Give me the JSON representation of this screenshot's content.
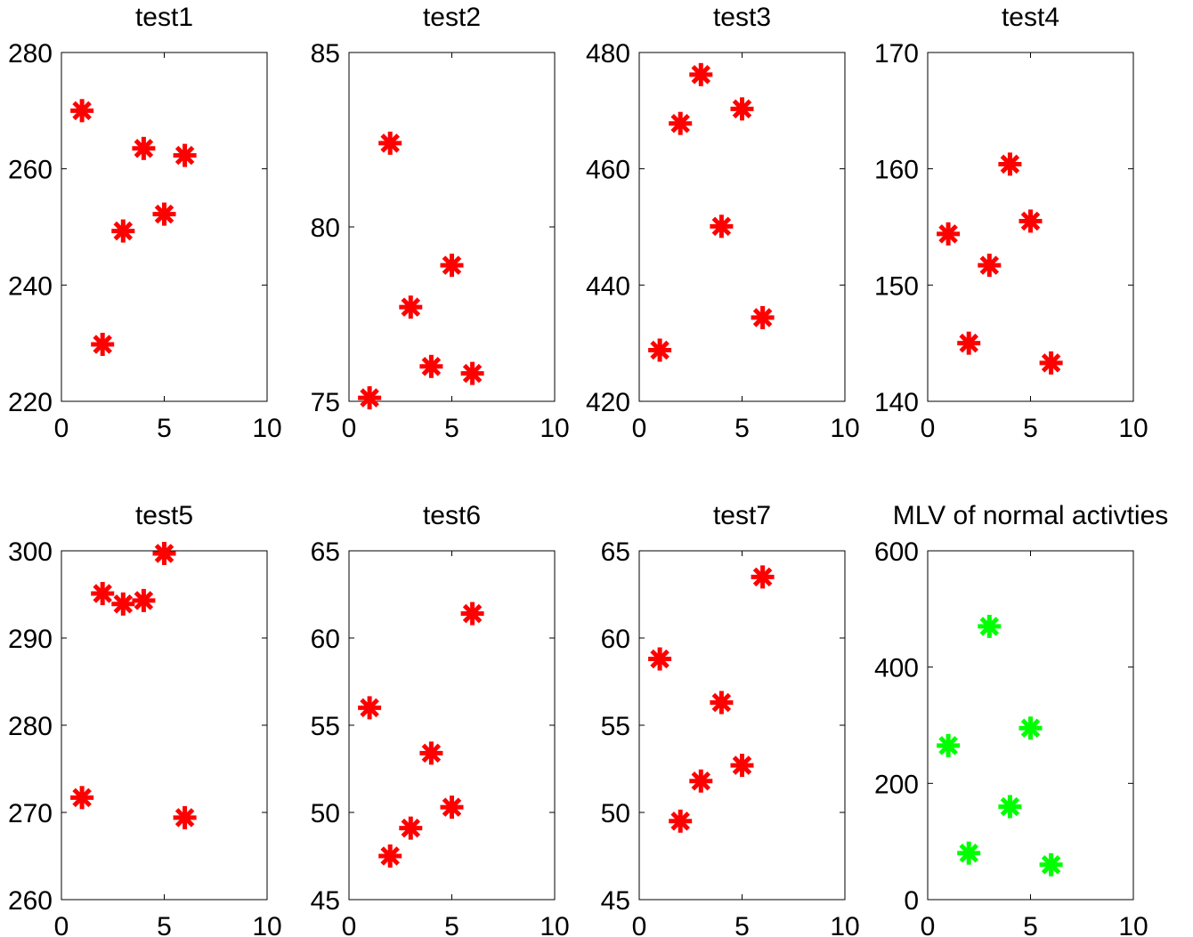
{
  "chart_data": [
    {
      "type": "scatter",
      "title": "test1",
      "xlabel": "",
      "ylabel": "",
      "xlim": [
        0,
        10
      ],
      "ylim": [
        220,
        280
      ],
      "xticks": [
        "0",
        "5",
        "10"
      ],
      "yticks": [
        "220",
        "240",
        "260",
        "280"
      ],
      "marker": "asterisk",
      "color": "#ff0000",
      "x": [
        1,
        2,
        3,
        4,
        5,
        6
      ],
      "y": [
        270,
        229.8,
        249.3,
        263.5,
        252.2,
        262.3
      ]
    },
    {
      "type": "scatter",
      "title": "test2",
      "xlabel": "",
      "ylabel": "",
      "xlim": [
        0,
        10
      ],
      "ylim": [
        75,
        85
      ],
      "xticks": [
        "0",
        "5",
        "10"
      ],
      "yticks": [
        "75",
        "80",
        "85"
      ],
      "marker": "asterisk",
      "color": "#ff0000",
      "x": [
        1,
        2,
        3,
        4,
        5,
        6
      ],
      "y": [
        75.1,
        82.4,
        77.7,
        76.0,
        78.9,
        75.8
      ]
    },
    {
      "type": "scatter",
      "title": "test3",
      "xlabel": "",
      "ylabel": "",
      "xlim": [
        0,
        10
      ],
      "ylim": [
        420,
        480
      ],
      "xticks": [
        "0",
        "5",
        "10"
      ],
      "yticks": [
        "420",
        "440",
        "460",
        "480"
      ],
      "marker": "asterisk",
      "color": "#ff0000",
      "x": [
        1,
        2,
        3,
        4,
        5,
        6
      ],
      "y": [
        428.8,
        467.8,
        476.2,
        450.1,
        470.3,
        434.4
      ]
    },
    {
      "type": "scatter",
      "title": "test4",
      "xlabel": "",
      "ylabel": "",
      "xlim": [
        0,
        10
      ],
      "ylim": [
        140,
        170
      ],
      "xticks": [
        "0",
        "5",
        "10"
      ],
      "yticks": [
        "140",
        "150",
        "160",
        "170"
      ],
      "marker": "asterisk",
      "color": "#ff0000",
      "x": [
        1,
        2,
        3,
        4,
        5,
        6
      ],
      "y": [
        154.4,
        145.0,
        151.7,
        160.4,
        155.5,
        143.3
      ]
    },
    {
      "type": "scatter",
      "title": "test5",
      "xlabel": "",
      "ylabel": "",
      "xlim": [
        0,
        10
      ],
      "ylim": [
        260,
        300
      ],
      "xticks": [
        "0",
        "5",
        "10"
      ],
      "yticks": [
        "260",
        "270",
        "280",
        "290",
        "300"
      ],
      "marker": "asterisk",
      "color": "#ff0000",
      "x": [
        1,
        2,
        3,
        4,
        5,
        6
      ],
      "y": [
        271.7,
        295.1,
        293.9,
        294.3,
        299.7,
        269.4
      ]
    },
    {
      "type": "scatter",
      "title": "test6",
      "xlabel": "",
      "ylabel": "",
      "xlim": [
        0,
        10
      ],
      "ylim": [
        45,
        65
      ],
      "xticks": [
        "0",
        "5",
        "10"
      ],
      "yticks": [
        "45",
        "50",
        "55",
        "60",
        "65"
      ],
      "marker": "asterisk",
      "color": "#ff0000",
      "x": [
        1,
        2,
        3,
        4,
        5,
        6
      ],
      "y": [
        56.0,
        47.5,
        49.1,
        53.4,
        50.3,
        61.4
      ]
    },
    {
      "type": "scatter",
      "title": "test7",
      "xlabel": "",
      "ylabel": "",
      "xlim": [
        0,
        10
      ],
      "ylim": [
        45,
        65
      ],
      "xticks": [
        "0",
        "5",
        "10"
      ],
      "yticks": [
        "45",
        "50",
        "55",
        "60",
        "65"
      ],
      "marker": "asterisk",
      "color": "#ff0000",
      "x": [
        1,
        2,
        3,
        4,
        5,
        6
      ],
      "y": [
        58.8,
        49.5,
        51.8,
        56.3,
        52.7,
        63.5
      ]
    },
    {
      "type": "scatter",
      "title": "MLV of normal activties",
      "xlabel": "",
      "ylabel": "",
      "xlim": [
        0,
        10
      ],
      "ylim": [
        0,
        600
      ],
      "xticks": [
        "0",
        "5",
        "10"
      ],
      "yticks": [
        "0",
        "200",
        "400",
        "600"
      ],
      "marker": "asterisk",
      "color": "#00ff00",
      "x": [
        1,
        2,
        3,
        4,
        5,
        6
      ],
      "y": [
        265,
        80,
        470,
        160,
        295,
        60
      ]
    }
  ]
}
